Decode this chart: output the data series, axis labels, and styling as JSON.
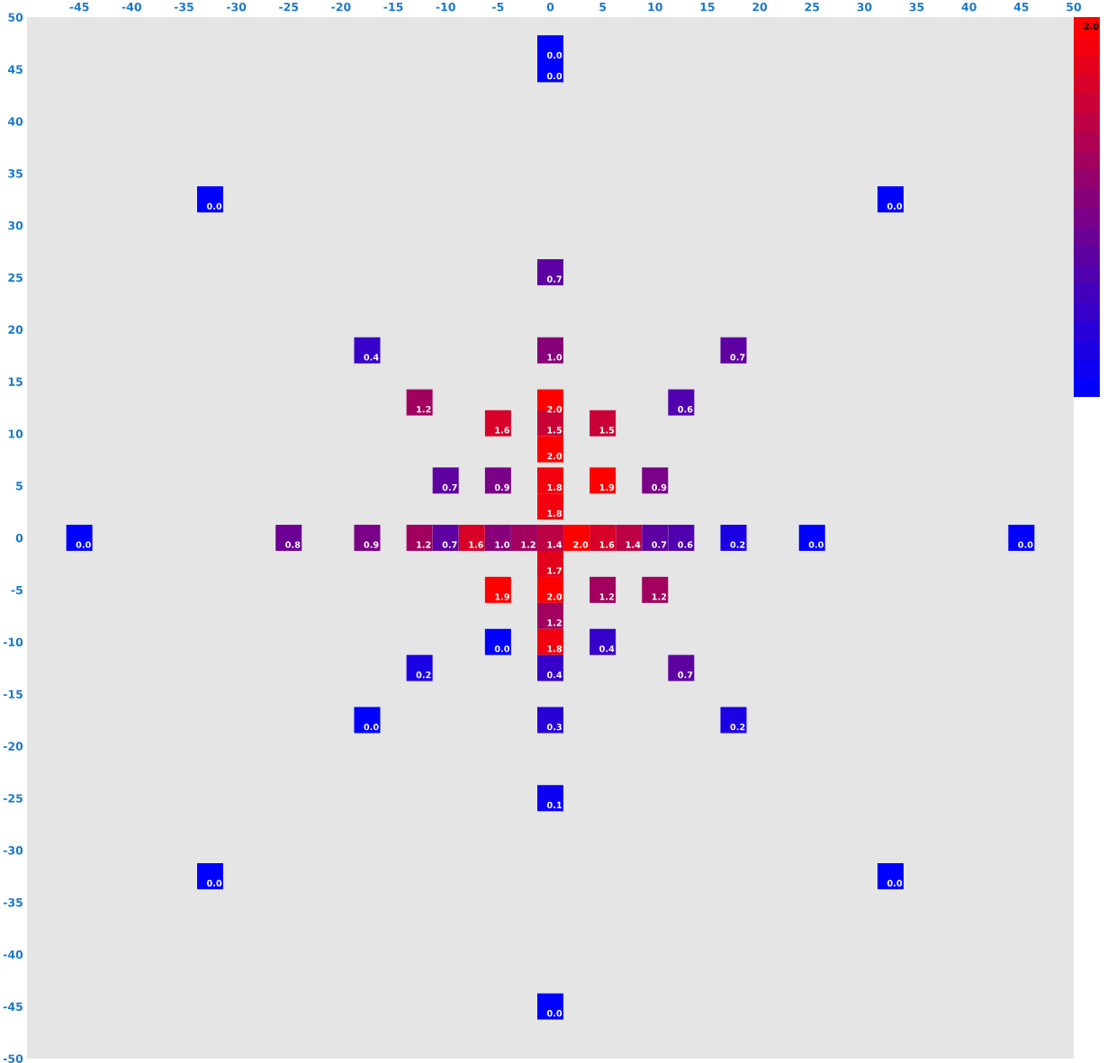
{
  "chart_data": {
    "type": "scatter",
    "marker": "square",
    "x": [
      0,
      0,
      -32.5,
      32.5,
      0,
      -17.5,
      0,
      17.5,
      -12.5,
      0,
      12.5,
      -5,
      0,
      5,
      0,
      -10,
      -5,
      0,
      5,
      10,
      0,
      -45,
      -25,
      -17.5,
      -12.5,
      -10,
      -7.5,
      -5,
      -2.5,
      0,
      2.5,
      5,
      7.5,
      10,
      12.5,
      17.5,
      25,
      45,
      0,
      -5,
      0,
      5,
      10,
      0,
      -5,
      0,
      5,
      -12.5,
      0,
      12.5,
      -17.5,
      0,
      17.5,
      0,
      -32.5,
      32.5,
      0
    ],
    "values": [
      47,
      45,
      32.5,
      32.5,
      25.5,
      18,
      18,
      18,
      13,
      13,
      13,
      11,
      11,
      11,
      8.5,
      5.5,
      5.5,
      5.5,
      5.5,
      5.5,
      3,
      0,
      0,
      0,
      0,
      0,
      0,
      0,
      0,
      0,
      0,
      0,
      0,
      0,
      0,
      0,
      0,
      0,
      -2.5,
      -5,
      -5,
      -5,
      -5,
      -7.5,
      -10,
      -10,
      -10,
      -12.5,
      -12.5,
      -12.5,
      -17.5,
      -17.5,
      -17.5,
      -25,
      -32.5,
      -32.5,
      -45
    ],
    "colors": [
      "#0000ff",
      "#0000ff",
      "#0000ff",
      "#0000ff",
      "#5e00a2",
      "#3600ca",
      "#870079",
      "#5e00a2",
      "#a1005e",
      "#ff0000",
      "#5100af",
      "#d70028",
      "#c90036",
      "#c90036",
      "#ff0000",
      "#5e00a2",
      "#790087",
      "#f2000d",
      "#ff0000",
      "#790087",
      "#f2000d",
      "#0000ff",
      "#6c0094",
      "#790087",
      "#a1005e",
      "#5e00a2",
      "#d70028",
      "#870079",
      "#a1005e",
      "#bc0043",
      "#ff0000",
      "#d70028",
      "#bc0043",
      "#5e00a2",
      "#5100af",
      "#1b00e4",
      "#0000ff",
      "#0000ff",
      "#e4001b",
      "#ff0000",
      "#ff0000",
      "#a1005e",
      "#a1005e",
      "#a1005e",
      "#0000ff",
      "#f2000d",
      "#3600ca",
      "#1b00e4",
      "#3600ca",
      "#5e00a2",
      "#0000ff",
      "#2800d7",
      "#1b00e4",
      "#0d00f2",
      "#0000ff",
      "#0000ff",
      "#0000ff"
    ],
    "annotations": [
      {
        "text": "0.0",
        "x": 0,
        "y": 47
      },
      {
        "text": "0.0",
        "x": 0,
        "y": 45
      },
      {
        "text": "0.0",
        "x": -32.5,
        "y": 32.5
      },
      {
        "text": "0.0",
        "x": 32.5,
        "y": 32.5
      },
      {
        "text": "0.7",
        "x": 0,
        "y": 25.5
      },
      {
        "text": "0.4",
        "x": -17.5,
        "y": 18
      },
      {
        "text": "1.0",
        "x": 0,
        "y": 18
      },
      {
        "text": "0.7",
        "x": 17.5,
        "y": 18
      },
      {
        "text": "1.2",
        "x": -12.5,
        "y": 13
      },
      {
        "text": "2.0",
        "x": 0,
        "y": 13
      },
      {
        "text": "0.6",
        "x": 12.5,
        "y": 13
      },
      {
        "text": "1.6",
        "x": -5,
        "y": 11
      },
      {
        "text": "1.5",
        "x": 0,
        "y": 11
      },
      {
        "text": "1.5",
        "x": 5,
        "y": 11
      },
      {
        "text": "2.0",
        "x": 0,
        "y": 8.5
      },
      {
        "text": "0.7",
        "x": -10,
        "y": 5.5
      },
      {
        "text": "0.9",
        "x": -5,
        "y": 5.5
      },
      {
        "text": "1.8",
        "x": 0,
        "y": 5.5
      },
      {
        "text": "1.9",
        "x": 5,
        "y": 5.5
      },
      {
        "text": "0.9",
        "x": 10,
        "y": 5.5
      },
      {
        "text": "1.8",
        "x": 0,
        "y": 3
      },
      {
        "text": "0.0",
        "x": -45,
        "y": 0
      },
      {
        "text": "0.8",
        "x": -25,
        "y": 0
      },
      {
        "text": "0.9",
        "x": -17.5,
        "y": 0
      },
      {
        "text": "1.2",
        "x": -12.5,
        "y": 0
      },
      {
        "text": "0.7",
        "x": -10,
        "y": 0
      },
      {
        "text": "1.6",
        "x": -7.5,
        "y": 0
      },
      {
        "text": "1.0",
        "x": -5,
        "y": 0
      },
      {
        "text": "1.2",
        "x": -2.5,
        "y": 0
      },
      {
        "text": "1.4",
        "x": 0,
        "y": 0
      },
      {
        "text": "2.0",
        "x": 2.5,
        "y": 0
      },
      {
        "text": "1.6",
        "x": 5,
        "y": 0
      },
      {
        "text": "1.4",
        "x": 7.5,
        "y": 0
      },
      {
        "text": "0.7",
        "x": 10,
        "y": 0
      },
      {
        "text": "0.6",
        "x": 12.5,
        "y": 0
      },
      {
        "text": "0.2",
        "x": 17.5,
        "y": 0
      },
      {
        "text": "0.0",
        "x": 25,
        "y": 0
      },
      {
        "text": "0.0",
        "x": 45,
        "y": 0
      },
      {
        "text": "1.7",
        "x": 0,
        "y": -2.5
      },
      {
        "text": "1.9",
        "x": -5,
        "y": -5
      },
      {
        "text": "2.0",
        "x": 0,
        "y": -5
      },
      {
        "text": "1.2",
        "x": 5,
        "y": -5
      },
      {
        "text": "1.2",
        "x": 10,
        "y": -5
      },
      {
        "text": "1.2",
        "x": 0,
        "y": -7.5
      },
      {
        "text": "0.0",
        "x": -5,
        "y": -10
      },
      {
        "text": "1.8",
        "x": 0,
        "y": -10
      },
      {
        "text": "0.4",
        "x": 5,
        "y": -10
      },
      {
        "text": "0.2",
        "x": -12.5,
        "y": -12.5
      },
      {
        "text": "0.4",
        "x": 0,
        "y": -12.5
      },
      {
        "text": "0.7",
        "x": 12.5,
        "y": -12.5
      },
      {
        "text": "0.0",
        "x": -17.5,
        "y": -17.5
      },
      {
        "text": "0.3",
        "x": 0,
        "y": -17.5
      },
      {
        "text": "0.2",
        "x": 17.5,
        "y": -17.5
      },
      {
        "text": "0.1",
        "x": 0,
        "y": -25
      },
      {
        "text": "0.0",
        "x": -32.5,
        "y": -32.5
      },
      {
        "text": "0.0",
        "x": 32.5,
        "y": -32.5
      },
      {
        "text": "0.0",
        "x": 0,
        "y": -45
      },
      "2.0"
    ],
    "xlim": [
      -50,
      50
    ],
    "ylim": [
      -50,
      50
    ],
    "xticks": [
      {
        "value": -50,
        "label": null
      },
      -45,
      -40,
      -35,
      -30,
      -25,
      -20,
      -15,
      -10,
      -5,
      0,
      5,
      10,
      15,
      20,
      25,
      30,
      35,
      40,
      45,
      50
    ],
    "yticks": [
      50,
      45,
      40,
      35,
      30,
      25,
      20,
      15,
      10,
      5,
      0,
      -5,
      -10,
      -15,
      -20,
      -25,
      -30,
      -35,
      -40,
      -45,
      -50
    ],
    "legend": false
  }
}
